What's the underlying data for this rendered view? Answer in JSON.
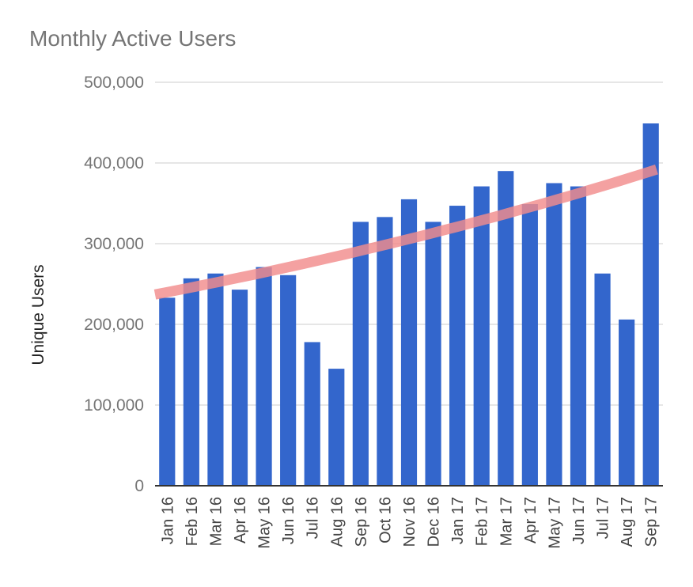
{
  "chart_data": {
    "type": "bar",
    "title": "Monthly Active Users",
    "xlabel": "",
    "ylabel": "Unique Users",
    "ylim": [
      0,
      500000
    ],
    "yticks": [
      "0",
      "100,000",
      "200,000",
      "300,000",
      "400,000",
      "500,000"
    ],
    "grid": true,
    "legend": "none",
    "categories": [
      "Jan 16",
      "Feb 16",
      "Mar 16",
      "Apr 16",
      "May 16",
      "Jun 16",
      "Jul 16",
      "Aug 16",
      "Sep 16",
      "Oct 16",
      "Nov 16",
      "Dec 16",
      "Jan 17",
      "Feb 17",
      "Mar 17",
      "Apr 17",
      "May 17",
      "Jun 17",
      "Jul 17",
      "Aug 17",
      "Sep 17"
    ],
    "series": [
      {
        "values": [
          233000,
          257000,
          263000,
          243000,
          271000,
          261000,
          178000,
          145000,
          327000,
          333000,
          355000,
          327000,
          347000,
          371000,
          390000,
          349000,
          375000,
          371000,
          263000,
          206000,
          449000
        ],
        "color": "#3366cc"
      }
    ],
    "trendline": {
      "type": "exponential",
      "color": "#f28c8c",
      "start": 237000,
      "end": 392000
    }
  }
}
